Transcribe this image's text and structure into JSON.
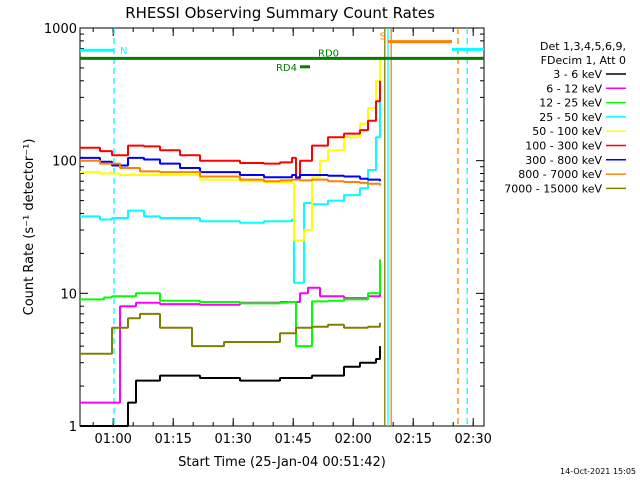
{
  "chart_data": {
    "type": "line",
    "title": "RHESSI Observing Summary Count Rates",
    "xlabel": "Start Time (25-Jan-04 00:51:42)",
    "ylabel": "Count Rate (s⁻¹ detector⁻¹)",
    "y_scale": "log",
    "ylim": [
      1,
      1000
    ],
    "xlim_minutes": [
      0,
      101
    ],
    "x_ticks": [
      {
        "label": "01:00",
        "t": 8.3
      },
      {
        "label": "01:15",
        "t": 23.3
      },
      {
        "label": "01:30",
        "t": 38.3
      },
      {
        "label": "01:45",
        "t": 53.3
      },
      {
        "label": "02:00",
        "t": 68.3
      },
      {
        "label": "02:15",
        "t": 83.3
      },
      {
        "label": "02:30",
        "t": 98.3
      }
    ],
    "y_ticks": [
      {
        "label": "1",
        "v": 1
      },
      {
        "label": "10",
        "v": 10
      },
      {
        "label": "100",
        "v": 100
      },
      {
        "label": "1000",
        "v": 1000
      }
    ],
    "legend_header": [
      "Det 1,3,4,5,6,9,",
      "FDecim 1, Att 0"
    ],
    "series": [
      {
        "name": "3 - 6 keV",
        "color": "#000000",
        "t": [
          0,
          8,
          12,
          14,
          20,
          30,
          40,
          50,
          58,
          62,
          66,
          70,
          74,
          75
        ],
        "values": [
          0,
          0,
          1.5,
          2.2,
          2.4,
          2.3,
          2.2,
          2.3,
          2.4,
          2.4,
          2.8,
          3.0,
          3.2,
          4.0
        ]
      },
      {
        "name": "6 - 12 keV",
        "color": "#ff00ff",
        "t": [
          0,
          8,
          10,
          14,
          20,
          30,
          40,
          50,
          53,
          55,
          57,
          60,
          66,
          72,
          75
        ],
        "values": [
          1.5,
          1.5,
          8,
          8.5,
          8.3,
          8.2,
          8.5,
          8.6,
          8.6,
          10,
          11,
          9.5,
          9.2,
          9.5,
          16
        ]
      },
      {
        "name": "12 - 25 keV",
        "color": "#00ff00",
        "t": [
          0,
          6,
          8,
          14,
          20,
          30,
          40,
          50,
          52,
          54,
          56,
          58,
          62,
          66,
          72,
          75
        ],
        "values": [
          9,
          9.3,
          9.5,
          10,
          8.8,
          8.6,
          8.4,
          8.5,
          8.6,
          4.0,
          4.0,
          8.7,
          8.8,
          9,
          10,
          18
        ]
      },
      {
        "name": "25 - 50 keV",
        "color": "#00ffff",
        "t": [
          0,
          5,
          8,
          12,
          16,
          20,
          30,
          40,
          46,
          50,
          53,
          53.5,
          55,
          56,
          58,
          62,
          66,
          70,
          72,
          74,
          75
        ],
        "values": [
          38,
          36,
          37,
          42,
          38,
          37,
          35,
          34,
          35,
          35,
          36,
          12,
          12,
          48,
          47,
          50,
          55,
          62,
          85,
          150,
          300
        ]
      },
      {
        "name": "50 - 100 keV",
        "color": "#ffff00",
        "t": [
          0,
          5,
          10,
          15,
          20,
          30,
          40,
          46,
          50,
          53,
          53.5,
          55,
          56,
          57,
          58,
          60,
          62,
          66,
          70,
          72,
          74,
          75
        ],
        "values": [
          82,
          80,
          78,
          78,
          78,
          72,
          70,
          69,
          69,
          68,
          25,
          25,
          30,
          30,
          75,
          100,
          120,
          150,
          190,
          250,
          400,
          600
        ]
      },
      {
        "name": "100 - 300 keV",
        "color": "#ff0000",
        "t": [
          0,
          5,
          8,
          12,
          16,
          20,
          25,
          30,
          40,
          46,
          50,
          53,
          54,
          55,
          58,
          62,
          66,
          70,
          72,
          74,
          75
        ],
        "values": [
          125,
          118,
          110,
          130,
          128,
          120,
          110,
          100,
          96,
          95,
          97,
          105,
          75,
          100,
          130,
          150,
          160,
          170,
          200,
          280,
          400
        ]
      },
      {
        "name": "300 - 800 keV",
        "color": "#0000ff",
        "t": [
          0,
          5,
          8,
          12,
          16,
          20,
          25,
          30,
          40,
          46,
          50,
          53,
          54,
          55,
          58,
          62,
          66,
          70,
          72,
          75
        ],
        "values": [
          105,
          98,
          92,
          105,
          102,
          95,
          88,
          82,
          78,
          75,
          75,
          78,
          74,
          78,
          78,
          77,
          76,
          73,
          72,
          70
        ]
      },
      {
        "name": "800 - 7000 keV",
        "color": "#ff8000",
        "t": [
          0,
          5,
          10,
          15,
          20,
          30,
          40,
          46,
          50,
          53,
          55,
          58,
          62,
          66,
          70,
          72,
          75
        ],
        "values": [
          100,
          95,
          88,
          83,
          82,
          76,
          72,
          70,
          71,
          72,
          71,
          72,
          70,
          69,
          68,
          67,
          65
        ]
      },
      {
        "name": "7000 - 15000 keV",
        "color": "#808000",
        "t": [
          0,
          6,
          8,
          12,
          15,
          20,
          28,
          36,
          44,
          50,
          54,
          58,
          62,
          66,
          70,
          72,
          75
        ],
        "values": [
          3.5,
          3.5,
          5.5,
          6.5,
          7.0,
          5.5,
          4.0,
          4.3,
          4.3,
          5.0,
          5.5,
          5.6,
          5.8,
          5.5,
          5.5,
          5.6,
          6.0
        ]
      }
    ],
    "annotations": [
      {
        "label": "N",
        "kind": "saa-bar",
        "color": "#00ffff",
        "t0": 0,
        "t1": 8.5,
        "value": 680
      },
      {
        "label": "RD0",
        "kind": "flag-bar",
        "color": "#008000",
        "t0": 0,
        "t1": 101,
        "value": 590
      },
      {
        "label": "RD4",
        "kind": "flag-bar",
        "color": "#008000",
        "t0": 55,
        "t1": 57.5,
        "value": 510
      },
      {
        "label": "S",
        "kind": "saa-bar",
        "color": "#ff8000",
        "t0": 77,
        "t1": 93,
        "value": 790
      },
      {
        "label": "",
        "kind": "saa-bar",
        "color": "#00ffff",
        "t0": 93,
        "t1": 101,
        "value": 690
      }
    ],
    "vertical_markers": [
      {
        "t": 8.5,
        "color": "#00ffff",
        "style": "dashed"
      },
      {
        "t": 76.2,
        "color": "#808000",
        "style": "solid"
      },
      {
        "t": 77.0,
        "color": "#00ffff",
        "style": "solid"
      },
      {
        "t": 77.8,
        "color": "#ff8000",
        "style": "solid"
      },
      {
        "t": 94.5,
        "color": "#ff8000",
        "style": "dashed"
      },
      {
        "t": 96.8,
        "color": "#00ffff",
        "style": "dashed"
      }
    ],
    "grid": false
  },
  "footer": {
    "timestamp": "14-Oct-2021 15:05"
  }
}
